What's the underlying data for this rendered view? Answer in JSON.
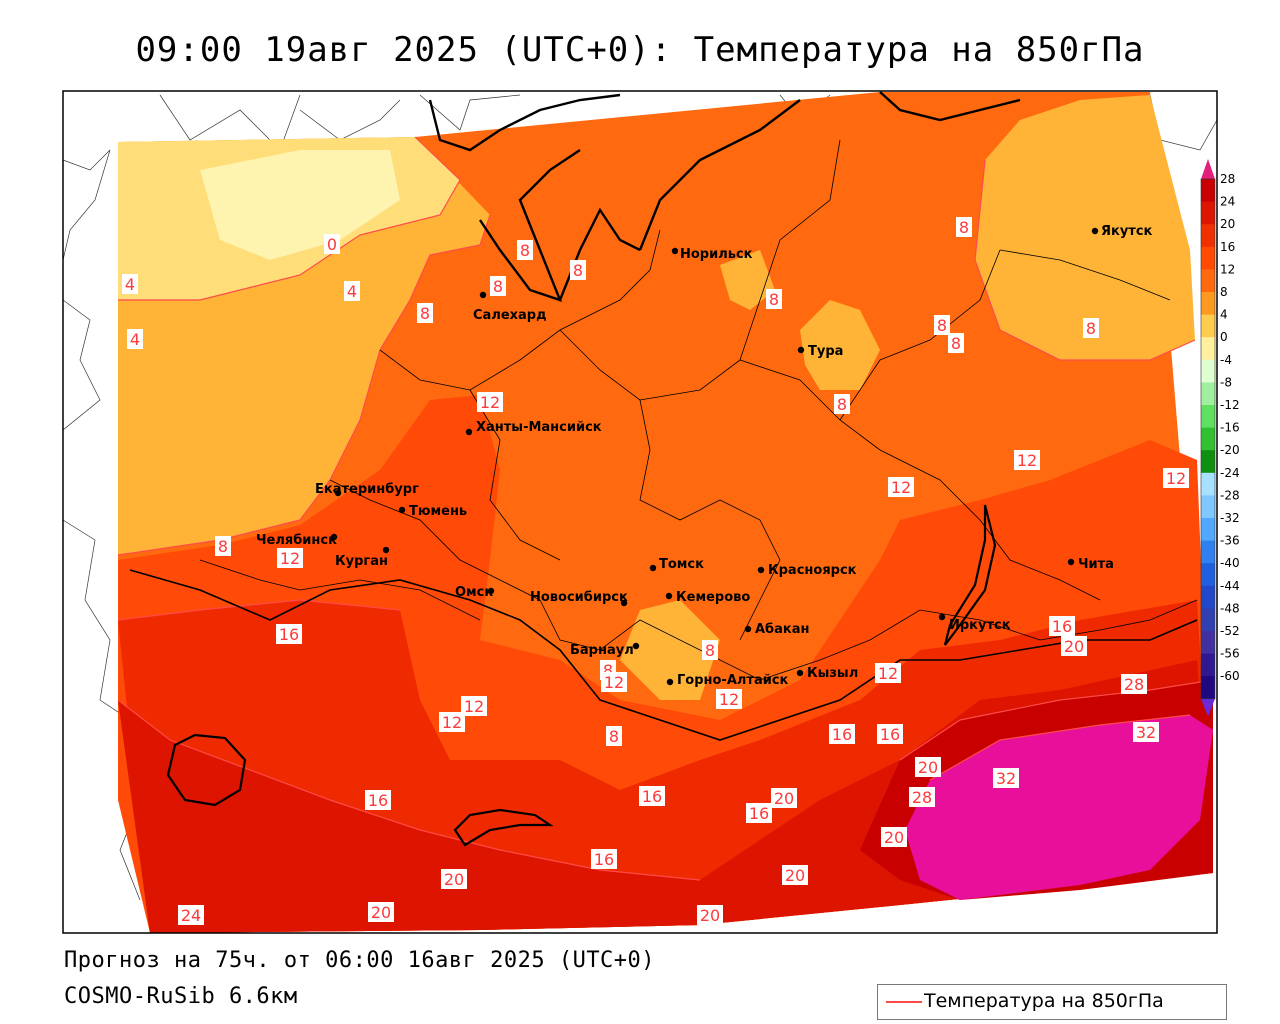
{
  "title": "09:00 19авг 2025 (UTC+0): Температура на 850гПа",
  "footer": {
    "forecast": "Прогноз на 75ч. от 06:00 16авг 2025 (UTC+0)",
    "model": "COSMO-RuSib 6.6км"
  },
  "legend": {
    "label": "Температура на 850гПа",
    "line_color": "#ff4a4a"
  },
  "colorbar": {
    "ticks": [
      "28",
      "24",
      "20",
      "16",
      "12",
      "8",
      "4",
      "0",
      "-4",
      "-8",
      "-12",
      "-16",
      "-20",
      "-24",
      "-28",
      "-32",
      "-36",
      "-40",
      "-44",
      "-48",
      "-52",
      "-56",
      "-60"
    ],
    "colors": [
      "#c80000",
      "#dc1400",
      "#f03000",
      "#ff4a00",
      "#ff6a10",
      "#ff9a20",
      "#ffcc50",
      "#fff0a0",
      "#e0ffd0",
      "#a0f0a0",
      "#60e060",
      "#30c030",
      "#109010",
      "#a8e0ff",
      "#80c8ff",
      "#50a8ff",
      "#3080f0",
      "#2060e0",
      "#2048c8",
      "#3040b0",
      "#4030a0",
      "#301890",
      "#200880"
    ],
    "top_color": "#e0207a",
    "bottom_color": "#6a2ad8"
  },
  "cities": [
    {
      "name": "Норильск"
    },
    {
      "name": "Салехард"
    },
    {
      "name": "Якутск"
    },
    {
      "name": "Тура"
    },
    {
      "name": "Ханты-Мансийск"
    },
    {
      "name": "Екатеринбург"
    },
    {
      "name": "Тюмень"
    },
    {
      "name": "Челябинск"
    },
    {
      "name": "Курган"
    },
    {
      "name": "Омск"
    },
    {
      "name": "Новосибирск"
    },
    {
      "name": "Томск"
    },
    {
      "name": "Кемерово"
    },
    {
      "name": "Красноярск"
    },
    {
      "name": "Барнаул"
    },
    {
      "name": "Абакан"
    },
    {
      "name": "Горно-Алтайск"
    },
    {
      "name": "Кызыл"
    },
    {
      "name": "Иркутск"
    },
    {
      "name": "Чита"
    }
  ],
  "contour_labels": [
    "0",
    "4",
    "4",
    "4",
    "8",
    "8",
    "8",
    "8",
    "8",
    "8",
    "8",
    "8",
    "8",
    "8",
    "8",
    "8",
    "8",
    "8",
    "12",
    "12",
    "12",
    "12",
    "12",
    "12",
    "12",
    "12",
    "12",
    "12",
    "16",
    "16",
    "16",
    "16",
    "16",
    "16",
    "16",
    "16",
    "20",
    "20",
    "20",
    "20",
    "20",
    "20",
    "20",
    "20",
    "24",
    "28",
    "28",
    "32",
    "32"
  ]
}
